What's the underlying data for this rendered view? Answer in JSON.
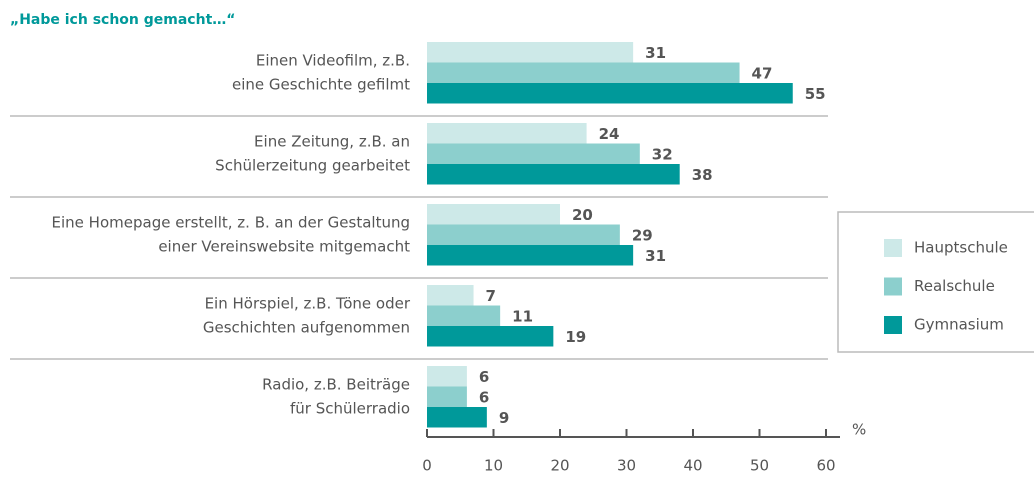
{
  "chart_data": {
    "type": "bar",
    "orientation": "horizontal",
    "title": "„Habe ich schon gemacht…“",
    "categories": [
      [
        "Einen Videofilm, z.B.",
        "eine Geschichte gefilmt"
      ],
      [
        "Eine Zeitung, z.B. an",
        "Schülerzeitung gearbeitet"
      ],
      [
        "Eine Homepage erstellt, z. B. an der Gestaltung",
        "einer Vereinswebsite mitgemacht"
      ],
      [
        "Ein Hörspiel, z.B. Töne oder",
        "Geschichten aufgenommen"
      ],
      [
        "Radio, z.B. Beiträge",
        "für Schülerradio"
      ]
    ],
    "series": [
      {
        "name": "Hauptschule",
        "color": "#cde9e8",
        "label_color": "#8fcfcd",
        "values": [
          31,
          24,
          20,
          7,
          6
        ]
      },
      {
        "name": "Realschule",
        "color": "#8ccfcd",
        "label_color": "#8fcfcd",
        "values": [
          47,
          32,
          29,
          11,
          6
        ]
      },
      {
        "name": "Gymnasium",
        "color": "#00999a",
        "label_color": "#00999a",
        "values": [
          55,
          38,
          31,
          19,
          9
        ]
      }
    ],
    "xlabel": "%",
    "xlim": [
      0,
      60
    ],
    "xticks": [
      0,
      10,
      20,
      30,
      40,
      50,
      60
    ],
    "legend": "right"
  }
}
